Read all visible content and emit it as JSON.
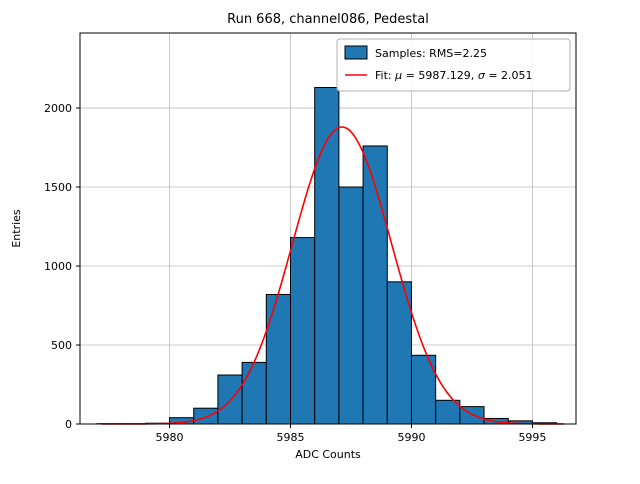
{
  "chart_data": {
    "type": "bar",
    "subtype": "histogram",
    "title": "Run 668, channel086, Pedestal",
    "xlabel": "ADC Counts",
    "ylabel": "Entries",
    "bin_start": 5977,
    "bin_width": 1,
    "values": [
      2,
      2,
      5,
      40,
      100,
      310,
      390,
      820,
      1180,
      2130,
      1500,
      1760,
      900,
      435,
      150,
      110,
      35,
      20,
      8
    ],
    "xlim": [
      5976.3,
      5996.8
    ],
    "ylim": [
      0,
      2475
    ],
    "xticks": [
      5980,
      5985,
      5990,
      5995
    ],
    "yticks": [
      0,
      500,
      1000,
      1500,
      2000
    ],
    "grid": true,
    "colors": {
      "background": "#ffffff",
      "bar_fill": "#1f77b4",
      "bar_edge": "#000000",
      "fit_line": "#ff0000",
      "grid": "#bbbbbb",
      "axes": "#000000"
    },
    "fit": {
      "mu": 5987.129,
      "sigma": 2.051,
      "amplitude": 1880,
      "x_range": [
        5977.2,
        5996.3
      ]
    },
    "legend": {
      "position": "upper-right",
      "entries": [
        {
          "marker": "patch",
          "label": "Samples: RMS=2.25"
        },
        {
          "marker": "line",
          "label": "Fit: μ = 5987.129, σ = 2.051"
        }
      ]
    }
  }
}
